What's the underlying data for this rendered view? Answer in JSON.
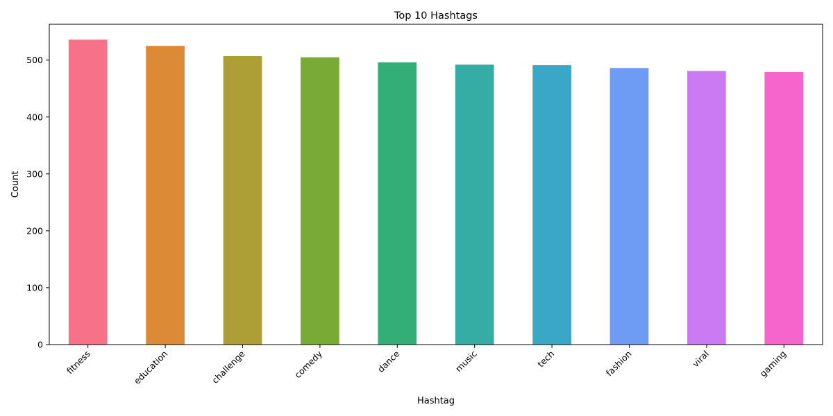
{
  "chart_data": {
    "type": "bar",
    "title": "Top 10 Hashtags",
    "xlabel": "Hashtag",
    "ylabel": "Count",
    "categories": [
      "fitness",
      "education",
      "challenge",
      "comedy",
      "dance",
      "music",
      "tech",
      "fashion",
      "viral",
      "gaming"
    ],
    "values": [
      536,
      525,
      507,
      505,
      496,
      492,
      491,
      486,
      481,
      479
    ],
    "colors": [
      "#f77189",
      "#dd8a36",
      "#ad9e35",
      "#79aa35",
      "#33ae76",
      "#36ada4",
      "#39a7c5",
      "#6e9bf4",
      "#cc79f4",
      "#f565cc"
    ],
    "ylim": [
      0,
      563
    ],
    "yticks": [
      0,
      100,
      200,
      300,
      400,
      500
    ],
    "grid": false,
    "legend": "none"
  }
}
